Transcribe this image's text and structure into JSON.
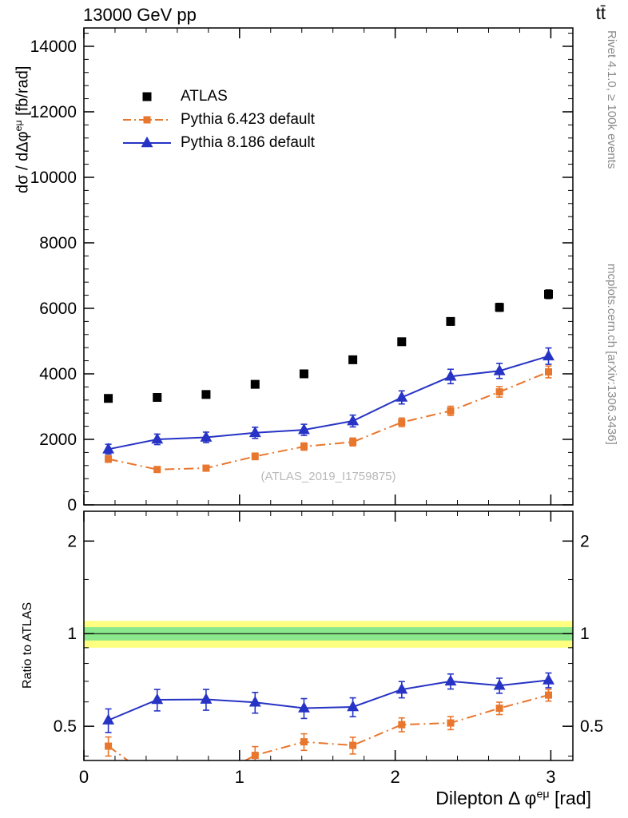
{
  "chart_data": {
    "type": "line",
    "title_left": "13000 GeV pp",
    "title_right": "tt̄",
    "side_top": "Rivet 4.1.0, ≥ 100k events",
    "side_bottom": "mcplots.cern.ch [arXiv:1306.3436]",
    "watermark": "(ATLAS_2019_I1759875)",
    "ylabel": {
      "prefix": "dσ / dΔφ",
      "sup": "eμ",
      "suffix": " [fb/rad]"
    },
    "xlabel": {
      "prefix": "Dilepton Δ φ",
      "sup": "eμ",
      "suffix": " [rad]"
    },
    "ratio_label": "Ratio to ATLAS",
    "legend_position": "top-left-inside",
    "grid": false,
    "x_range": [
      0,
      3.14159
    ],
    "x_ticks": [
      0,
      1,
      2,
      3
    ],
    "x_minor_step": 0.2,
    "main_y_range": [
      0,
      14560
    ],
    "main_y_ticks": [
      0,
      2000,
      4000,
      6000,
      8000,
      10000,
      12000,
      14000
    ],
    "main_y_minor_step": 400,
    "ratio_y_range": [
      0.387,
      2.5
    ],
    "ratio_y_scale": "log",
    "ratio_y_ticks": [
      0.5,
      1,
      2
    ],
    "ratio_y_minor": [
      0.4,
      0.6,
      0.7,
      0.8,
      0.9,
      1.5
    ],
    "bands": {
      "yellow": [
        0.9,
        1.1
      ],
      "green": [
        0.95,
        1.05
      ]
    },
    "colors": {
      "atlas": "#000000",
      "pythia6": "#e8762d",
      "pythia8": "#2633c4",
      "band_yellow": "#ffff80",
      "band_green": "#8ce88c",
      "watermark": "#b9b9b9",
      "side_text": "#8a8a8a"
    },
    "x": [
      0.157,
      0.471,
      0.785,
      1.1,
      1.414,
      1.728,
      2.042,
      2.356,
      2.67,
      2.985
    ],
    "series": [
      {
        "id": "atlas",
        "name": "ATLAS",
        "marker": "square",
        "marker_size": 11,
        "color": "#000000",
        "line": "none",
        "values": [
          3250,
          3280,
          3370,
          3680,
          4000,
          4430,
          4980,
          5600,
          6030,
          6430
        ],
        "err": [
          70,
          70,
          70,
          80,
          80,
          90,
          100,
          110,
          120,
          130
        ]
      },
      {
        "id": "pythia6",
        "name": "Pythia 6.423 default",
        "marker": "square",
        "marker_size": 9,
        "color": "#e8762d",
        "line": "dashdot",
        "values": [
          1400,
          1080,
          1120,
          1480,
          1780,
          1920,
          2520,
          2870,
          3450,
          4060
        ],
        "err": [
          100,
          80,
          80,
          100,
          110,
          120,
          130,
          140,
          160,
          180
        ]
      },
      {
        "id": "pythia8",
        "name": "Pythia 8.186 default",
        "marker": "triangle",
        "marker_size": 12,
        "color": "#2633c4",
        "line": "solid",
        "values": [
          1700,
          2000,
          2060,
          2200,
          2290,
          2560,
          3280,
          3920,
          4090,
          4540
        ],
        "err": [
          150,
          160,
          160,
          170,
          170,
          180,
          200,
          220,
          230,
          250
        ]
      }
    ]
  }
}
